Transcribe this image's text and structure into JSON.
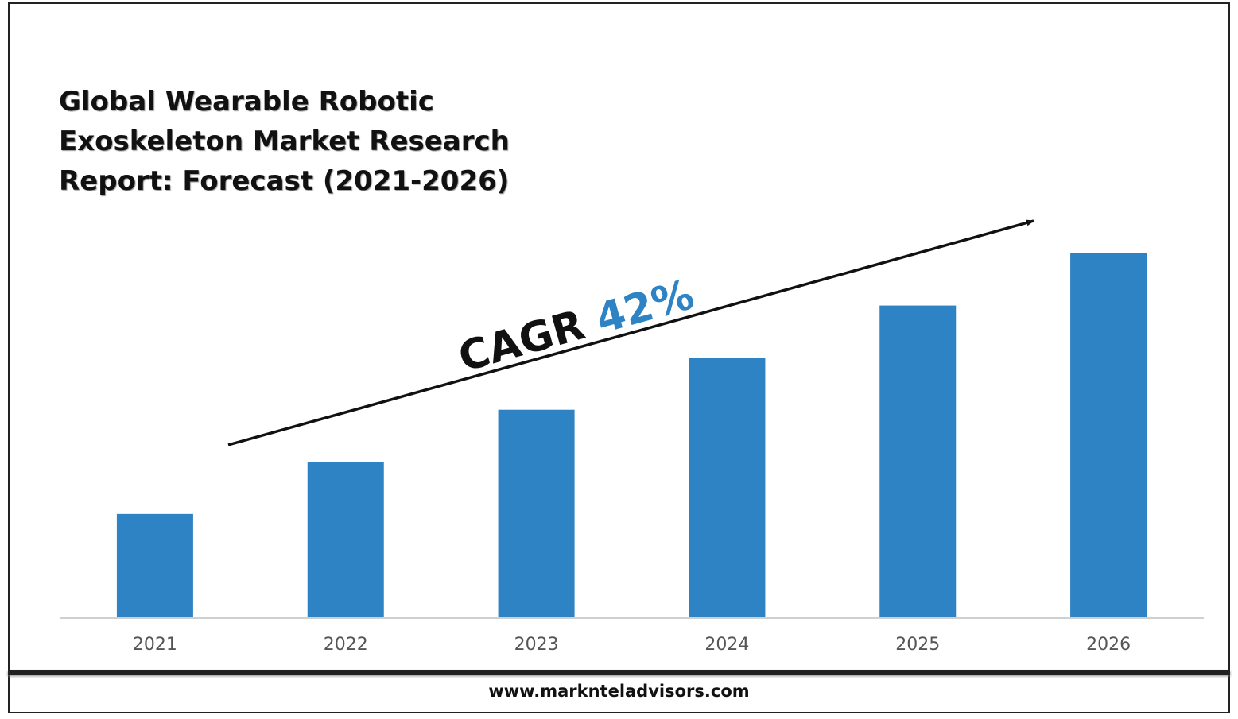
{
  "title": "Global Wearable Robotic\nExoskeleton Market Research\nReport: Forecast (2021-2026)",
  "footer_url": "www.marknteladvisors.com",
  "annotation": {
    "prefix": "CAGR ",
    "value": "42%",
    "prefix_color": "#111111",
    "value_color": "#2e83c4"
  },
  "colors": {
    "bar": "#2e83c4",
    "axis": "#d0d0d0",
    "tick_text": "#555555"
  },
  "chart_data": {
    "type": "bar",
    "categories": [
      "2021",
      "2022",
      "2023",
      "2024",
      "2025",
      "2026"
    ],
    "values": [
      1.0,
      1.5,
      2.0,
      2.5,
      3.0,
      3.5
    ],
    "title": "Global Wearable Robotic Exoskeleton Market Research Report: Forecast (2021-2026)",
    "xlabel": "",
    "ylabel": "",
    "ylim": [
      0,
      3.5
    ],
    "grid": false,
    "legend": "none"
  }
}
